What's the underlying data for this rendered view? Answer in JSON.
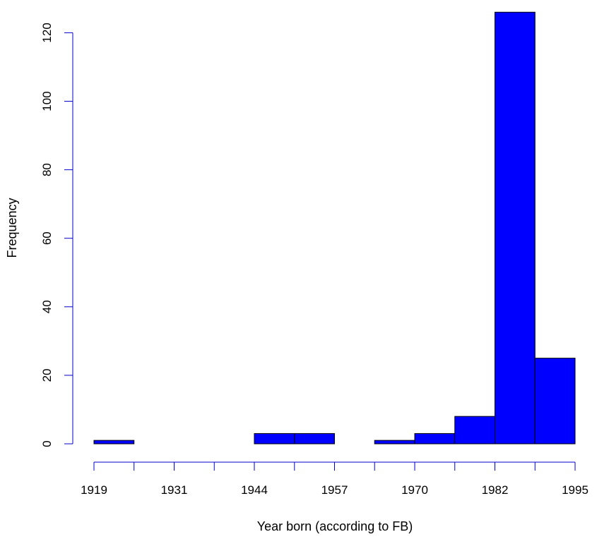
{
  "chart_data": {
    "type": "bar",
    "subtype": "histogram",
    "title": "",
    "xlabel": "Year born (according to FB)",
    "ylabel": "Frequency",
    "bins": [
      {
        "from": 1919,
        "to": 1925.33,
        "count": 1
      },
      {
        "from": 1925.33,
        "to": 1931.67,
        "count": 0
      },
      {
        "from": 1931.67,
        "to": 1938,
        "count": 0
      },
      {
        "from": 1938,
        "to": 1944.33,
        "count": 0
      },
      {
        "from": 1944.33,
        "to": 1950.67,
        "count": 3
      },
      {
        "from": 1950.67,
        "to": 1957,
        "count": 3
      },
      {
        "from": 1957,
        "to": 1963.33,
        "count": 0
      },
      {
        "from": 1963.33,
        "to": 1969.67,
        "count": 1
      },
      {
        "from": 1969.67,
        "to": 1976,
        "count": 3
      },
      {
        "from": 1976,
        "to": 1982.33,
        "count": 8
      },
      {
        "from": 1982.33,
        "to": 1988.67,
        "count": 126
      },
      {
        "from": 1988.67,
        "to": 1995,
        "count": 25
      }
    ],
    "x_ticks": [
      "1919",
      "1931",
      "1944",
      "1957",
      "1970",
      "1982",
      "1995"
    ],
    "y_ticks": [
      "0",
      "20",
      "40",
      "60",
      "80",
      "100",
      "120"
    ],
    "xlim": [
      1919,
      1995
    ],
    "ylim": [
      0,
      126
    ],
    "grid": false,
    "legend": "none",
    "colors": {
      "bar_fill": "#0000ff",
      "bar_stroke": "#000000",
      "axis": "#0000cc"
    }
  }
}
